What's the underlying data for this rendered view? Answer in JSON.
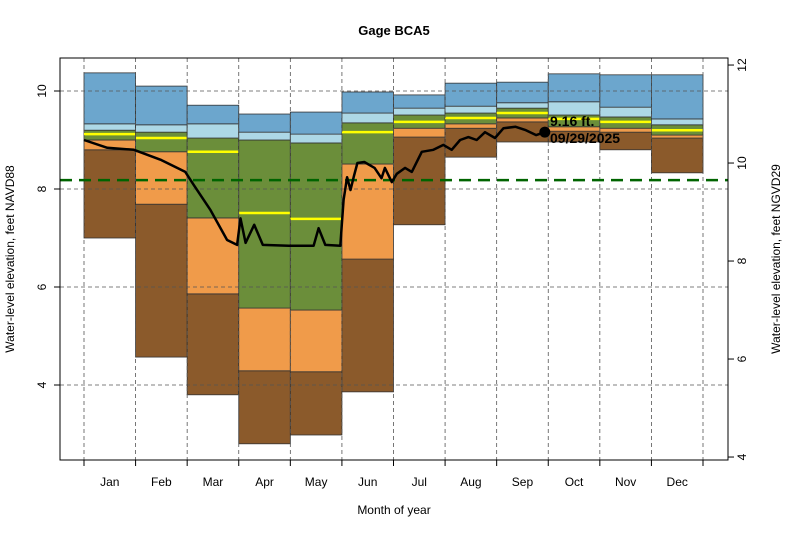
{
  "chart_data": {
    "type": "area",
    "title": "Gage BCA5",
    "xlabel": "Month of year",
    "ylabel": "Water-level elevation, feet NAVD88",
    "ylabel_right": "Water-level elevation, feet NGVD29",
    "categories": [
      "Jan",
      "Feb",
      "Mar",
      "Apr",
      "May",
      "Jun",
      "Jul",
      "Aug",
      "Sep",
      "Oct",
      "Nov",
      "Dec"
    ],
    "ylim": [
      2.6,
      10.7
    ],
    "yticks": [
      4,
      6,
      8,
      10
    ],
    "yticks_right": [
      4,
      6,
      8,
      10,
      12
    ],
    "datum_offset_ngvd29": 1.47,
    "grid": true,
    "bands": {
      "min": [
        7.0,
        4.57,
        3.8,
        2.8,
        2.98,
        3.86,
        7.27,
        8.65,
        8.96,
        8.96,
        8.8,
        8.33
      ],
      "p10": [
        8.8,
        7.69,
        5.86,
        4.29,
        4.27,
        6.57,
        9.06,
        9.24,
        9.37,
        9.18,
        9.16,
        9.04
      ],
      "p25": [
        9.0,
        8.76,
        7.41,
        5.57,
        5.53,
        8.51,
        9.24,
        9.33,
        9.45,
        9.27,
        9.24,
        9.1
      ],
      "median": [
        9.12,
        9.04,
        8.76,
        7.51,
        7.39,
        9.16,
        9.37,
        9.45,
        9.55,
        9.43,
        9.37,
        9.2
      ],
      "p75": [
        9.2,
        9.16,
        9.04,
        9.0,
        8.94,
        9.35,
        9.51,
        9.55,
        9.65,
        9.51,
        9.47,
        9.31
      ],
      "p90": [
        9.33,
        9.31,
        9.33,
        9.16,
        9.12,
        9.55,
        9.65,
        9.69,
        9.76,
        9.78,
        9.67,
        9.43
      ],
      "max": [
        10.37,
        10.1,
        9.71,
        9.53,
        9.57,
        9.98,
        9.92,
        10.16,
        10.18,
        10.35,
        10.33,
        10.33
      ]
    },
    "band_colors": {
      "min_p10": "#8B5A2B",
      "p10_p25": "#F09B4A",
      "p25_p75": "#6B8E3A",
      "p75_p90": "#ADD8E6",
      "p90_max": "#6CA6CD",
      "median": "#FFFF00"
    },
    "reference_line": {
      "value": 8.18,
      "color": "#006400"
    },
    "current_series": {
      "color": "#000000",
      "points": [
        [
          "01-01",
          9.0
        ],
        [
          "01-15",
          8.84
        ],
        [
          "01-31",
          8.8
        ],
        [
          "02-15",
          8.59
        ],
        [
          "02-28",
          8.35
        ],
        [
          "03-05",
          8.08
        ],
        [
          "03-15",
          7.57
        ],
        [
          "03-25",
          6.96
        ],
        [
          "03-31",
          6.86
        ],
        [
          "04-02",
          7.4
        ],
        [
          "04-05",
          6.9
        ],
        [
          "04-10",
          7.27
        ],
        [
          "04-15",
          6.86
        ],
        [
          "04-30",
          6.84
        ],
        [
          "05-15",
          6.84
        ],
        [
          "05-18",
          7.2
        ],
        [
          "05-22",
          6.86
        ],
        [
          "05-31",
          6.84
        ],
        [
          "06-02",
          7.78
        ],
        [
          "06-04",
          8.24
        ],
        [
          "06-06",
          7.98
        ],
        [
          "06-08",
          8.27
        ],
        [
          "06-10",
          8.53
        ],
        [
          "06-14",
          8.55
        ],
        [
          "06-20",
          8.43
        ],
        [
          "06-24",
          8.22
        ],
        [
          "06-26",
          8.43
        ],
        [
          "06-30",
          8.14
        ],
        [
          "07-03",
          8.31
        ],
        [
          "07-08",
          8.43
        ],
        [
          "07-12",
          8.35
        ],
        [
          "07-18",
          8.76
        ],
        [
          "07-25",
          8.8
        ],
        [
          "07-31",
          8.9
        ],
        [
          "08-05",
          8.8
        ],
        [
          "08-10",
          9.0
        ],
        [
          "08-15",
          9.06
        ],
        [
          "08-20",
          9.0
        ],
        [
          "08-25",
          9.16
        ],
        [
          "08-31",
          9.04
        ],
        [
          "09-05",
          9.24
        ],
        [
          "09-12",
          9.27
        ],
        [
          "09-18",
          9.2
        ],
        [
          "09-24",
          9.1
        ],
        [
          "09-29",
          9.16
        ]
      ]
    },
    "annotation": {
      "value_label": "9.16 ft.",
      "date_label": "09/29/2025"
    }
  }
}
